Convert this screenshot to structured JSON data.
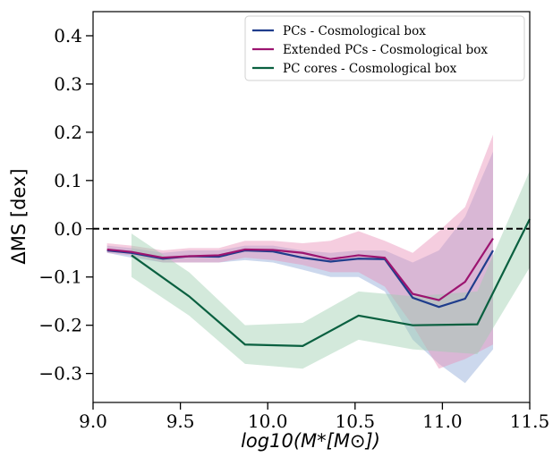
{
  "chart_data": {
    "type": "line",
    "title": "",
    "xlabel": "log10(M*[M⊙])",
    "ylabel": "ΔMS [dex]",
    "xlim": [
      9.0,
      11.5
    ],
    "ylim": [
      -0.36,
      0.45
    ],
    "xticks": [
      "9.0",
      "9.5",
      "10.0",
      "10.5",
      "11.0",
      "11.5"
    ],
    "yticks": [
      "0.4",
      "0.3",
      "0.2",
      "0.1",
      "0.0",
      "-0.1",
      "-0.2",
      "-0.3"
    ],
    "xtick_values": [
      9.0,
      9.5,
      10.0,
      10.5,
      11.0,
      11.5
    ],
    "ytick_values": [
      0.4,
      0.3,
      0.2,
      0.1,
      0.0,
      -0.1,
      -0.2,
      -0.3
    ],
    "grid": false,
    "legend_position": "top-right",
    "reference_line": {
      "y": 0.0,
      "style": "dashed",
      "color": "#000000"
    },
    "series": [
      {
        "name": "PCs - Cosmological box",
        "color": "#1f3d8c",
        "band_color": "#8fa8d8",
        "x": [
          9.08,
          9.22,
          9.4,
          9.55,
          9.72,
          9.87,
          10.03,
          10.2,
          10.36,
          10.52,
          10.67,
          10.83,
          10.98,
          11.13,
          11.29
        ],
        "y": [
          -0.045,
          -0.05,
          -0.062,
          -0.057,
          -0.058,
          -0.045,
          -0.047,
          -0.06,
          -0.068,
          -0.062,
          -0.063,
          -0.143,
          -0.162,
          -0.145,
          -0.045
        ],
        "lower": [
          -0.05,
          -0.06,
          -0.07,
          -0.07,
          -0.07,
          -0.065,
          -0.07,
          -0.085,
          -0.1,
          -0.1,
          -0.13,
          -0.23,
          -0.28,
          -0.32,
          -0.25
        ],
        "upper": [
          -0.035,
          -0.04,
          -0.05,
          -0.045,
          -0.045,
          -0.035,
          -0.035,
          -0.045,
          -0.05,
          -0.045,
          -0.045,
          -0.07,
          -0.045,
          0.025,
          0.16
        ]
      },
      {
        "name": "Extended PCs - Cosmological box",
        "color": "#9c1470",
        "band_color": "#e890b8",
        "x": [
          9.08,
          9.22,
          9.4,
          9.55,
          9.72,
          9.87,
          10.03,
          10.2,
          10.36,
          10.52,
          10.67,
          10.83,
          10.98,
          11.13,
          11.29
        ],
        "y": [
          -0.043,
          -0.048,
          -0.06,
          -0.057,
          -0.055,
          -0.043,
          -0.044,
          -0.05,
          -0.063,
          -0.055,
          -0.06,
          -0.135,
          -0.148,
          -0.11,
          -0.02
        ],
        "lower": [
          -0.05,
          -0.055,
          -0.07,
          -0.07,
          -0.07,
          -0.06,
          -0.065,
          -0.075,
          -0.09,
          -0.09,
          -0.12,
          -0.2,
          -0.29,
          -0.27,
          -0.24
        ],
        "upper": [
          -0.03,
          -0.035,
          -0.045,
          -0.04,
          -0.04,
          -0.025,
          -0.025,
          -0.03,
          -0.025,
          -0.005,
          -0.025,
          -0.05,
          -0.005,
          0.045,
          0.195
        ]
      },
      {
        "name": "PC cores - Cosmological box",
        "color": "#0a6040",
        "band_color": "#9ecfb0",
        "x": [
          9.22,
          9.55,
          9.87,
          10.2,
          10.52,
          10.83,
          11.2,
          11.5
        ],
        "y": [
          -0.055,
          -0.14,
          -0.24,
          -0.243,
          -0.18,
          -0.2,
          -0.198,
          0.02
        ],
        "lower": [
          -0.1,
          -0.18,
          -0.28,
          -0.29,
          -0.23,
          -0.25,
          -0.26,
          -0.08
        ],
        "upper": [
          -0.01,
          -0.09,
          -0.2,
          -0.195,
          -0.13,
          -0.14,
          -0.13,
          0.12
        ]
      }
    ]
  }
}
